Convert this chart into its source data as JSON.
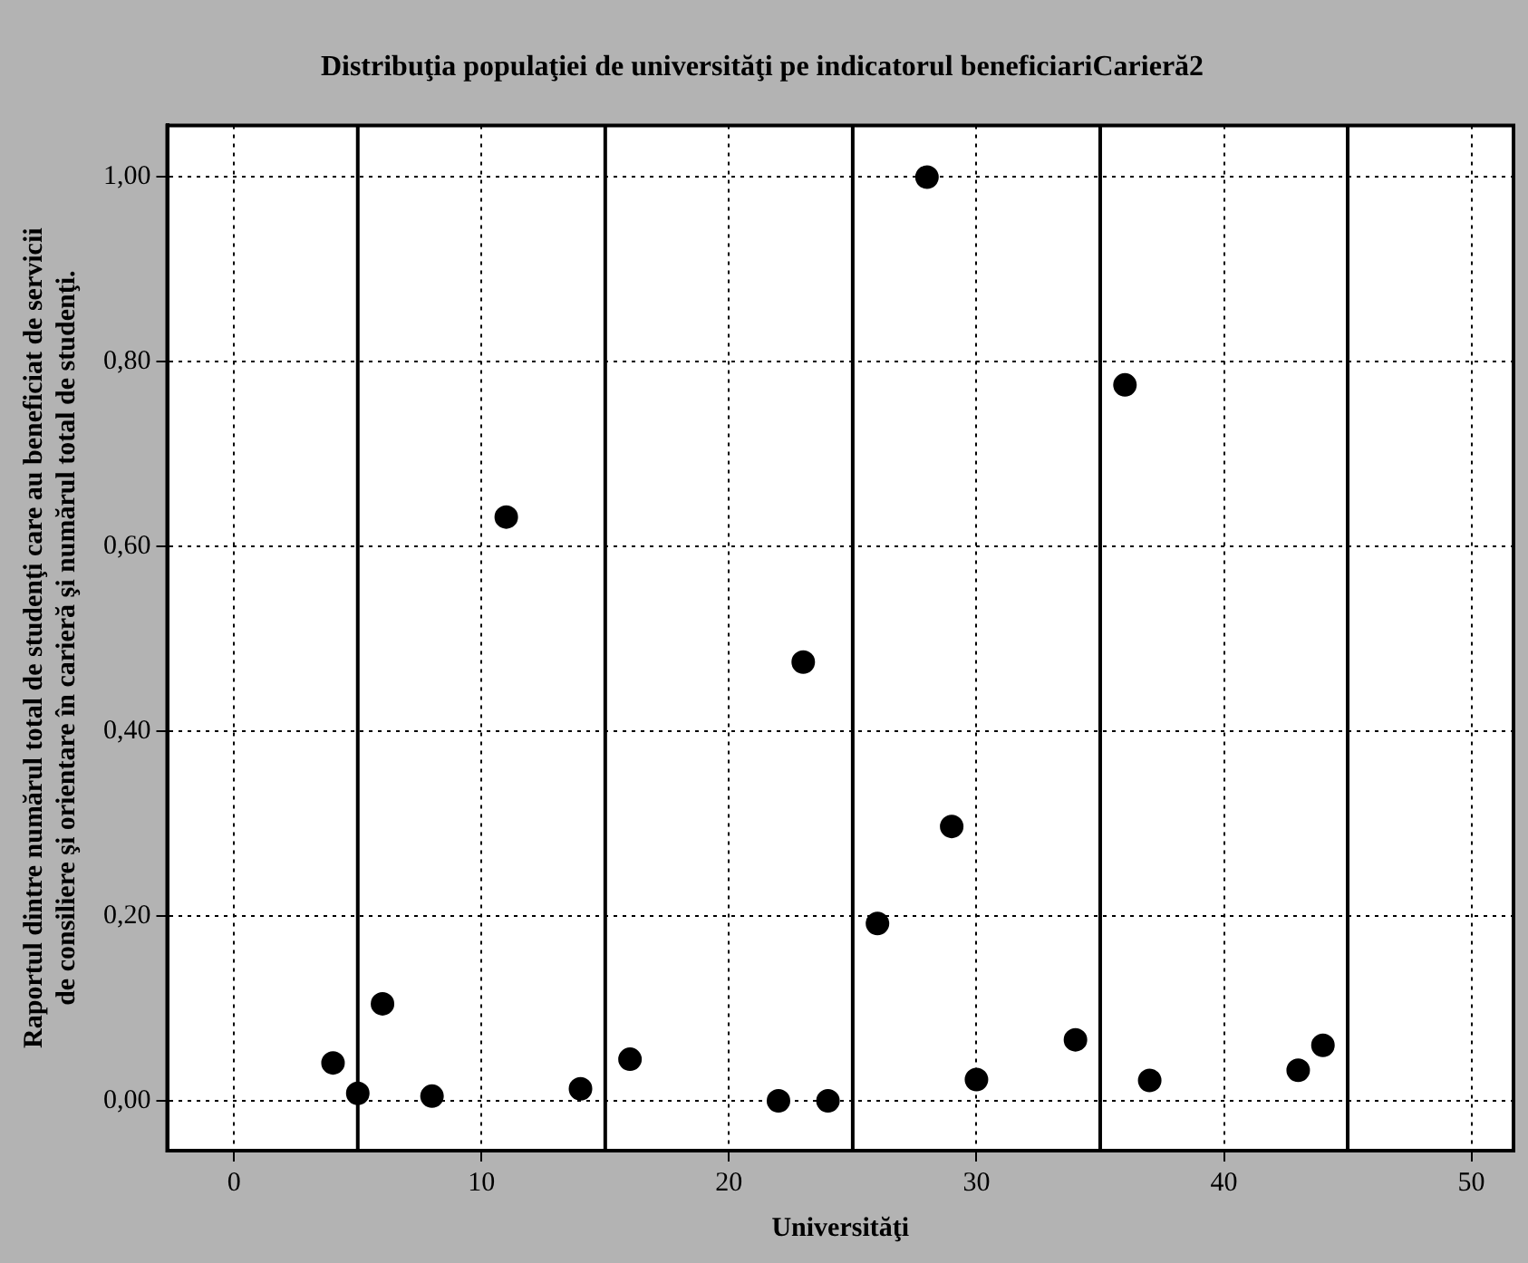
{
  "chart_data": {
    "type": "scatter",
    "title": "Distribuţia populaţiei de universităţi pe indicatorul beneficiariCarieră2",
    "xlabel": "Universităţi",
    "ylabel": "Raportul dintre numărul total de studenţi care au beneficiat de servicii\nde consiliere şi orientare în carieră şi numărul total de studenţi.",
    "series": [
      {
        "color": "#000000",
        "x": [
          4,
          5,
          6,
          8,
          11,
          14,
          16,
          22,
          23,
          24,
          26,
          28,
          29,
          30,
          34,
          36,
          37,
          43,
          44
        ],
        "values": [
          0.041,
          0.008,
          0.105,
          0.005,
          0.632,
          0.013,
          0.045,
          0,
          0.475,
          0,
          0.192,
          1.0,
          0.297,
          0.023,
          0.066,
          0.775,
          0.022,
          0.033,
          0.06
        ]
      }
    ],
    "xlim": [
      -2.7,
      51.7
    ],
    "xticks": [
      0,
      10,
      20,
      30,
      40,
      50
    ],
    "ylim": [
      -0.054,
      1.056
    ],
    "yticks": [
      {
        "value": 0,
        "label": "0,00"
      },
      {
        "value": 0.2,
        "label": "0,20"
      },
      {
        "value": 0.4,
        "label": "0,40"
      },
      {
        "value": 0.6,
        "label": "0,60"
      },
      {
        "value": 0.8,
        "label": "0,80"
      },
      {
        "value": 1,
        "label": "1,00"
      }
    ],
    "ref_lines": [
      {
        "axis": "x",
        "value": 5,
        "color": "#000000",
        "line_style": "solid"
      },
      {
        "axis": "x",
        "value": 15,
        "color": "#000000",
        "line_style": "solid"
      },
      {
        "axis": "x",
        "value": 25,
        "color": "#000000",
        "line_style": "solid"
      },
      {
        "axis": "x",
        "value": 35,
        "color": "#000000",
        "line_style": "solid"
      },
      {
        "axis": "x",
        "value": 45,
        "color": "#000000",
        "line_style": "solid"
      }
    ],
    "grid": true,
    "legend": false,
    "marker": "circle"
  }
}
